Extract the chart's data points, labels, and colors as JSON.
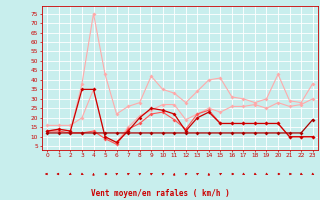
{
  "background_color": "#c8eeed",
  "grid_color": "#ffffff",
  "xlabel": "Vent moyen/en rafales ( km/h )",
  "xlabel_color": "#cc0000",
  "tick_color": "#cc0000",
  "arrow_color": "#cc0000",
  "x_ticks": [
    0,
    1,
    2,
    3,
    4,
    5,
    6,
    7,
    8,
    9,
    10,
    11,
    12,
    13,
    14,
    15,
    16,
    17,
    18,
    19,
    20,
    21,
    22,
    23
  ],
  "y_ticks": [
    5,
    10,
    15,
    20,
    25,
    30,
    35,
    40,
    45,
    50,
    55,
    60,
    65,
    70,
    75
  ],
  "ylim": [
    3,
    79
  ],
  "xlim": [
    -0.5,
    23.5
  ],
  "series": [
    {
      "color": "#ffaaaa",
      "lw": 0.8,
      "marker": "D",
      "ms": 2.0,
      "data": [
        13,
        14,
        13,
        38,
        75,
        43,
        22,
        26,
        28,
        42,
        35,
        33,
        28,
        34,
        40,
        41,
        31,
        30,
        28,
        30,
        43,
        29,
        28,
        38
      ]
    },
    {
      "color": "#ffaaaa",
      "lw": 0.8,
      "marker": "D",
      "ms": 2.0,
      "data": [
        16,
        16,
        16,
        20,
        35,
        10,
        7,
        15,
        21,
        24,
        27,
        27,
        19,
        22,
        25,
        23,
        26,
        26,
        27,
        25,
        28,
        26,
        27,
        30
      ]
    },
    {
      "color": "#ff5555",
      "lw": 0.8,
      "marker": "D",
      "ms": 2.0,
      "data": [
        13,
        13,
        12,
        12,
        13,
        9,
        6,
        14,
        17,
        22,
        23,
        19,
        14,
        22,
        24,
        17,
        17,
        17,
        17,
        17,
        17,
        10,
        10,
        10
      ]
    },
    {
      "color": "#cc0000",
      "lw": 0.9,
      "marker": "D",
      "ms": 2.0,
      "data": [
        13,
        14,
        13,
        35,
        35,
        10,
        7,
        13,
        20,
        25,
        24,
        22,
        13,
        20,
        23,
        17,
        17,
        17,
        17,
        17,
        17,
        10,
        10,
        10
      ]
    },
    {
      "color": "#aa0000",
      "lw": 0.9,
      "marker": "D",
      "ms": 2.0,
      "data": [
        12,
        12,
        12,
        12,
        12,
        12,
        12,
        12,
        12,
        12,
        12,
        12,
        12,
        12,
        12,
        12,
        12,
        12,
        12,
        12,
        12,
        12,
        12,
        19
      ]
    }
  ],
  "arrow_angles_deg": [
    180,
    180,
    225,
    315,
    90,
    0,
    45,
    45,
    45,
    45,
    45,
    90,
    45,
    45,
    90,
    45,
    0,
    315,
    315,
    315,
    0,
    0,
    315,
    315
  ]
}
